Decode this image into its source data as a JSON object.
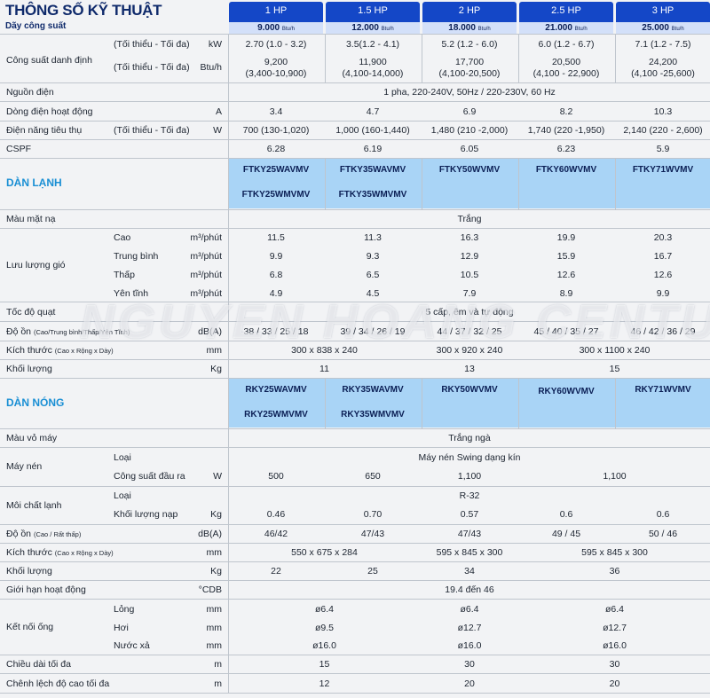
{
  "header": {
    "title": "THÔNG SỐ KỸ THUẬT",
    "subtitle": "Dãy công suất",
    "columns": [
      {
        "hp": "1 HP",
        "capacity": "9.000",
        "unit": "Btu/h"
      },
      {
        "hp": "1.5 HP",
        "capacity": "12.000",
        "unit": "Btu/h"
      },
      {
        "hp": "2 HP",
        "capacity": "18.000",
        "unit": "Btu/h"
      },
      {
        "hp": "2.5 HP",
        "capacity": "21.000",
        "unit": "Btu/h"
      },
      {
        "hp": "3 HP",
        "capacity": "25.000",
        "unit": "Btu/h"
      }
    ]
  },
  "rated_capacity": {
    "label": "Công suất danh định",
    "sub1": "(Tối thiểu - Tối đa)",
    "unit1": "kW",
    "kw": [
      "2.70 (1.0 - 3.2)",
      "3.5(1.2 - 4.1)",
      "5.2 (1.2 - 6.0)",
      "6.0 (1.2 - 6.7)",
      "7.1 (1.2 - 7.5)"
    ],
    "sub2": "(Tối thiểu - Tối đa)",
    "unit2": "Btu/h",
    "btu_main": [
      "9,200",
      "11,900",
      "17,700",
      "20,500",
      "24,200"
    ],
    "btu_range": [
      "(3,400-10,900)",
      "(4,100-14,000)",
      "(4,100-20,500)",
      "(4,100 - 22,900)",
      "(4,100 -25,600)"
    ]
  },
  "power_source": {
    "label": "Nguồn điện",
    "value": "1 pha, 220-240V, 50Hz / 220-230V, 60 Hz"
  },
  "current": {
    "label": "Dòng điện hoạt động",
    "unit": "A",
    "values": [
      "3.4",
      "4.7",
      "6.9",
      "8.2",
      "10.3"
    ]
  },
  "consumption": {
    "label": "Điện năng tiêu thụ",
    "sub": "(Tối thiểu - Tối đa)",
    "unit": "W",
    "values": [
      "700 (130-1,020)",
      "1,000 (160-1,440)",
      "1,480 (210 -2,000)",
      "1,740 (220 -1,950)",
      "2,140 (220 - 2,600)"
    ]
  },
  "cspf": {
    "label": "CSPF",
    "values": [
      "6.28",
      "6.19",
      "6.05",
      "6.23",
      "5.9"
    ]
  },
  "indoor": {
    "title": "DÀN LẠNH",
    "models_a": [
      "FTKY25WAVMV",
      "FTKY35WAVMV",
      "FTKY50WVMV",
      "FTKY60WVMV",
      "FTKY71WVMV"
    ],
    "models_b": [
      "FTKY25WMVMV",
      "FTKY35WMVMV"
    ],
    "panel": {
      "label": "Màu mặt nạ",
      "value": "Trắng"
    },
    "airflow": {
      "label": "Lưu lượng gió",
      "rows": [
        {
          "name": "Cao",
          "unit": "m³/phút",
          "values": [
            "11.5",
            "11.3",
            "16.3",
            "19.9",
            "20.3"
          ]
        },
        {
          "name": "Trung bình",
          "unit": "m³/phút",
          "values": [
            "9.9",
            "9.3",
            "12.9",
            "15.9",
            "16.7"
          ]
        },
        {
          "name": "Thấp",
          "unit": "m³/phút",
          "values": [
            "6.8",
            "6.5",
            "10.5",
            "12.6",
            "12.6"
          ]
        },
        {
          "name": "Yên tĩnh",
          "unit": "m³/phút",
          "values": [
            "4.9",
            "4.5",
            "7.9",
            "8.9",
            "9.9"
          ]
        }
      ]
    },
    "fan_speed": {
      "label": "Tốc độ quạt",
      "value": "5 cấp, êm và tự động"
    },
    "noise": {
      "label": "Độ ồn",
      "label_small": "(Cao/Trung bình/Thấp/Yên Tĩnh)",
      "unit": "dB(A)",
      "values": [
        "38 / 33 / 25 / 18",
        "39 / 34 / 26 / 19",
        "44 / 37 / 32 / 25",
        "45 / 40 / 35 / 27",
        "46 / 42 / 36 / 29"
      ]
    },
    "size": {
      "label": "Kích thước",
      "label_small": "(Cao x Rộng x Dày)",
      "unit": "mm",
      "values": [
        "300 x 838 x 240",
        "300 x 920 x 240",
        "300 x 1100 x 240"
      ]
    },
    "weight": {
      "label": "Khối lượng",
      "unit": "Kg",
      "values": [
        "11",
        "13",
        "15"
      ]
    }
  },
  "outdoor": {
    "title": "DÀN NÓNG",
    "models_a": [
      "RKY25WAVMV",
      "RKY35WAVMV",
      "RKY50WVMV",
      "RKY60WVMV",
      "RKY71WVMV"
    ],
    "models_b": [
      "RKY25WMVMV",
      "RKY35WMVMV"
    ],
    "casing": {
      "label": "Màu vỏ máy",
      "value": "Trắng ngà"
    },
    "compressor": {
      "label": "Máy nén",
      "type_label": "Loại",
      "type_value": "Máy nén Swing dạng kín",
      "output_label": "Công suất đầu ra",
      "unit": "W",
      "values": [
        "500",
        "650",
        "1,100",
        "1,100"
      ]
    },
    "refrigerant": {
      "label": "Môi chất lạnh",
      "type_label": "Loại",
      "type_value": "R-32",
      "charge_label": "Khối lượng nạp",
      "unit": "Kg",
      "values": [
        "0.46",
        "0.70",
        "0.57",
        "0.6",
        "0.6"
      ]
    },
    "noise": {
      "label": "Độ ồn",
      "label_small": "(Cao / Rất thấp)",
      "unit": "dB(A)",
      "values": [
        "46/42",
        "47/43",
        "47/43",
        "49 / 45",
        "50 / 46"
      ]
    },
    "size": {
      "label": "Kích thước",
      "label_small": "(Cao x Rộng x Dày)",
      "unit": "mm",
      "values": [
        "550 x 675 x 284",
        "595 x 845 x 300",
        "595 x 845 x 300"
      ]
    },
    "weight": {
      "label": "Khối lượng",
      "unit": "Kg",
      "values": [
        "22",
        "25",
        "34",
        "36"
      ]
    },
    "op_limit": {
      "label": "Giới hạn hoạt động",
      "unit": "°CDB",
      "value": "19.4 đến 46"
    },
    "piping": {
      "label": "Kết nối ống",
      "rows": [
        {
          "name": "Lỏng",
          "unit": "mm",
          "values": [
            "ø6.4",
            "ø6.4",
            "ø6.4"
          ]
        },
        {
          "name": "Hơi",
          "unit": "mm",
          "values": [
            "ø9.5",
            "ø12.7",
            "ø12.7"
          ]
        },
        {
          "name": "Nước xả",
          "unit": "mm",
          "values": [
            "ø16.0",
            "ø16.0",
            "ø16.0"
          ]
        }
      ]
    },
    "max_length": {
      "label": "Chiều dài tối đa",
      "unit": "m",
      "values": [
        "15",
        "30",
        "30"
      ]
    },
    "max_height": {
      "label": "Chênh lệch độ cao tối đa",
      "unit": "m",
      "values": [
        "12",
        "20",
        "20"
      ]
    }
  },
  "watermark": "NGUYEN HOANG CENTURY"
}
